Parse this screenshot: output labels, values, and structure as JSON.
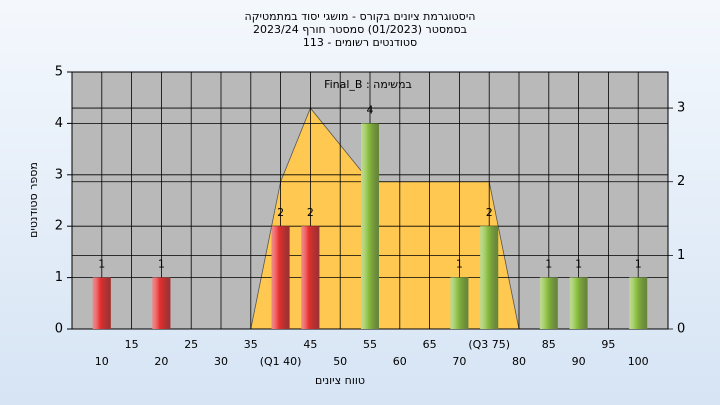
{
  "chart_data": {
    "type": "bar",
    "title": [
      "היסטוגרמת ציונים בקורס - מושגי יסוד במתמטיקה",
      "בסמסטר  (01/2023)  סמסטר חורף  2023/24",
      "סטודנטים רשומים - 113"
    ],
    "subtitle": "במשימה : Final_B",
    "x_label": "טווח ציונים",
    "y_label": "מספר סטודנטים",
    "xlim": [
      5,
      105
    ],
    "xticks": [
      10,
      15,
      20,
      25,
      30,
      35,
      {
        "value": 40,
        "label": "(Q1 40)"
      },
      45,
      50,
      55,
      60,
      65,
      70,
      {
        "value": 75,
        "label": "(Q3 75)"
      },
      80,
      85,
      90,
      95,
      100
    ],
    "ylim": [
      0,
      5
    ],
    "yticks": [
      0,
      1,
      2,
      3,
      4,
      5
    ],
    "y2lim": [
      0,
      3.49
    ],
    "y2ticks": [
      0,
      1,
      2,
      3
    ],
    "grid": true,
    "series": [
      {
        "color": "#e83030",
        "x": [
          10,
          20,
          40,
          45
        ],
        "values": [
          1,
          1,
          2,
          2
        ]
      },
      {
        "color": "#8cc040",
        "x": [
          55,
          70,
          75,
          85,
          90,
          100
        ],
        "values": [
          4,
          1,
          2,
          1,
          1,
          1
        ]
      },
      {
        "color": "#ffc850",
        "axis": "y2",
        "kind": "area",
        "x": [
          35,
          40,
          45,
          53,
          55,
          75,
          80
        ],
        "values": [
          0,
          2,
          3,
          2.2,
          2,
          2,
          0
        ]
      }
    ]
  }
}
